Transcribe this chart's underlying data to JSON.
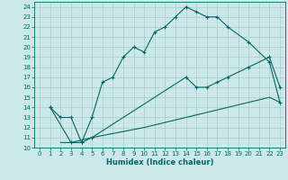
{
  "xlabel": "Humidex (Indice chaleur)",
  "bg_color": "#cce8e8",
  "grid_color": "#aacccc",
  "line_color": "#006868",
  "xlim": [
    -0.5,
    23.5
  ],
  "ylim": [
    10,
    24.5
  ],
  "xticks": [
    0,
    1,
    2,
    3,
    4,
    5,
    6,
    7,
    8,
    9,
    10,
    11,
    12,
    13,
    14,
    15,
    16,
    17,
    18,
    19,
    20,
    21,
    22,
    23
  ],
  "yticks": [
    10,
    11,
    12,
    13,
    14,
    15,
    16,
    17,
    18,
    19,
    20,
    21,
    22,
    23,
    24
  ],
  "line1_x": [
    1,
    2,
    3,
    4,
    5,
    6,
    7,
    8,
    9,
    10,
    11,
    12,
    13,
    14,
    15,
    16,
    17,
    18,
    20,
    22,
    23
  ],
  "line1_y": [
    14,
    13,
    13,
    10.5,
    13,
    16.5,
    17,
    19,
    20,
    19.5,
    21.5,
    22,
    23,
    24,
    23.5,
    23,
    23,
    22,
    20.5,
    18.5,
    14.5
  ],
  "line2_x": [
    1,
    3,
    4,
    5,
    14,
    15,
    16,
    17,
    18,
    20,
    22,
    23
  ],
  "line2_y": [
    14,
    10.5,
    10.5,
    11,
    17,
    16,
    16,
    16.5,
    17,
    18,
    19,
    16
  ],
  "line3_x": [
    2,
    3,
    5,
    10,
    14,
    18,
    22,
    23
  ],
  "line3_y": [
    10.5,
    10.5,
    11,
    12,
    13,
    14,
    15,
    14.5
  ]
}
